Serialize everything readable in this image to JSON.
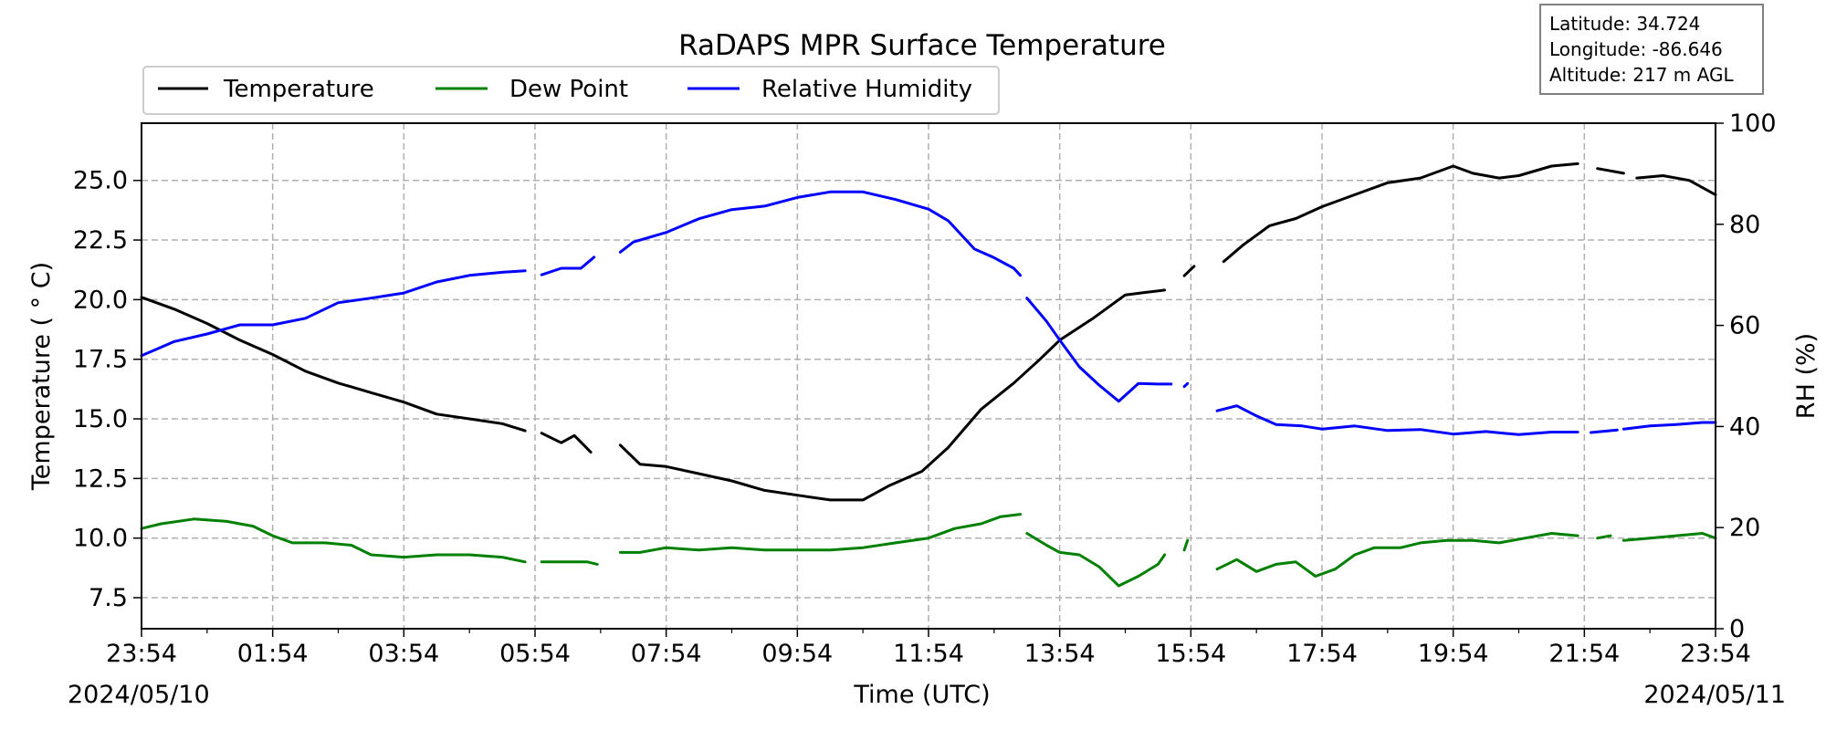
{
  "chart_data": {
    "type": "line",
    "title": "RaDAPS MPR Surface Temperature",
    "xlabel": "Time (UTC)",
    "ylabel": "Temperature ($^\\circ$C)",
    "ylabel_display": "Temperature ( ° C)",
    "ylabel_right": "RH (%)",
    "x_ticks": [
      "23:54",
      "01:54",
      "03:54",
      "05:54",
      "07:54",
      "09:54",
      "11:54",
      "13:54",
      "15:54",
      "17:54",
      "19:54",
      "21:54",
      "23:54"
    ],
    "date_start": "2024/05/10",
    "date_end": "2024/05/11",
    "xlim_hours": [
      0,
      24
    ],
    "ylim": [
      6.2,
      27.4
    ],
    "y_ticks": [
      "7.5",
      "10.0",
      "12.5",
      "15.0",
      "17.5",
      "20.0",
      "22.5",
      "25.0"
    ],
    "y_tick_values": [
      7.5,
      10.0,
      12.5,
      15.0,
      17.5,
      20.0,
      22.5,
      25.0
    ],
    "ylim_right": [
      0,
      100
    ],
    "y_ticks_right": [
      "0",
      "20",
      "40",
      "60",
      "80",
      "100"
    ],
    "grid": true,
    "legend_placement": "top-left, above axes",
    "info_box": {
      "latitude": "Latitude: 34.724",
      "longitude": "Longitude: -86.646",
      "altitude": "Altitude: 217 m AGL"
    },
    "series": [
      {
        "name": "Temperature",
        "color": "#000000",
        "axis": "left",
        "segments": [
          [
            [
              0,
              20.1
            ],
            [
              0.5,
              19.6
            ],
            [
              1,
              19.0
            ],
            [
              1.5,
              18.3
            ],
            [
              2,
              17.7
            ],
            [
              2.5,
              17.0
            ],
            [
              3,
              16.5
            ],
            [
              3.5,
              16.1
            ],
            [
              4,
              15.7
            ],
            [
              4.5,
              15.2
            ],
            [
              5,
              15.0
            ],
            [
              5.5,
              14.8
            ],
            [
              5.85,
              14.5
            ]
          ],
          [
            [
              6.1,
              14.4
            ],
            [
              6.4,
              14.0
            ],
            [
              6.6,
              14.3
            ],
            [
              6.85,
              13.6
            ]
          ],
          [
            [
              7.3,
              13.9
            ],
            [
              7.6,
              13.1
            ],
            [
              8,
              13.0
            ],
            [
              8.5,
              12.7
            ],
            [
              9,
              12.4
            ],
            [
              9.5,
              12.0
            ],
            [
              10,
              11.8
            ],
            [
              10.5,
              11.6
            ],
            [
              11,
              11.6
            ],
            [
              11.4,
              12.2
            ],
            [
              11.9,
              12.8
            ],
            [
              12.3,
              13.8
            ],
            [
              12.8,
              15.4
            ],
            [
              13.3,
              16.5
            ],
            [
              13.7,
              17.5
            ],
            [
              14,
              18.3
            ],
            [
              14.5,
              19.2
            ],
            [
              15,
              20.2
            ],
            [
              15.3,
              20.3
            ],
            [
              15.6,
              20.4
            ]
          ],
          [
            [
              15.9,
              21.0
            ],
            [
              16.05,
              21.4
            ]
          ],
          [
            [
              16.5,
              21.6
            ],
            [
              16.8,
              22.3
            ],
            [
              17.2,
              23.1
            ],
            [
              17.6,
              23.4
            ],
            [
              18,
              23.9
            ],
            [
              18.5,
              24.4
            ],
            [
              19,
              24.9
            ],
            [
              19.5,
              25.1
            ],
            [
              20,
              25.6
            ],
            [
              20.3,
              25.3
            ],
            [
              20.7,
              25.1
            ],
            [
              21,
              25.2
            ],
            [
              21.5,
              25.6
            ],
            [
              21.9,
              25.7
            ]
          ],
          [
            [
              22.2,
              25.5
            ],
            [
              22.6,
              25.3
            ]
          ],
          [
            [
              22.8,
              25.1
            ],
            [
              23.2,
              25.2
            ],
            [
              23.6,
              25.0
            ],
            [
              24,
              24.4
            ]
          ]
        ]
      },
      {
        "name": "Dew Point",
        "color": "#008000",
        "axis": "left",
        "segments": [
          [
            [
              0,
              10.4
            ],
            [
              0.3,
              10.6
            ],
            [
              0.8,
              10.8
            ],
            [
              1.3,
              10.7
            ],
            [
              1.7,
              10.5
            ],
            [
              2,
              10.1
            ],
            [
              2.3,
              9.8
            ],
            [
              2.8,
              9.8
            ],
            [
              3.2,
              9.7
            ],
            [
              3.5,
              9.3
            ],
            [
              4,
              9.2
            ],
            [
              4.5,
              9.3
            ],
            [
              5,
              9.3
            ],
            [
              5.5,
              9.2
            ],
            [
              5.85,
              9.0
            ]
          ],
          [
            [
              6.1,
              9.0
            ],
            [
              6.5,
              9.0
            ],
            [
              6.8,
              9.0
            ],
            [
              6.95,
              8.9
            ]
          ],
          [
            [
              7.3,
              9.4
            ],
            [
              7.6,
              9.4
            ],
            [
              8,
              9.6
            ],
            [
              8.5,
              9.5
            ],
            [
              9,
              9.6
            ],
            [
              9.5,
              9.5
            ],
            [
              10,
              9.5
            ],
            [
              10.5,
              9.5
            ],
            [
              11,
              9.6
            ],
            [
              11.5,
              9.8
            ],
            [
              12,
              10.0
            ],
            [
              12.4,
              10.4
            ],
            [
              12.8,
              10.6
            ],
            [
              13.1,
              10.9
            ],
            [
              13.4,
              11.0
            ]
          ],
          [
            [
              13.5,
              10.2
            ],
            [
              13.8,
              9.7
            ],
            [
              14,
              9.4
            ],
            [
              14.3,
              9.3
            ],
            [
              14.6,
              8.8
            ],
            [
              14.9,
              8.0
            ],
            [
              15.2,
              8.4
            ],
            [
              15.5,
              8.9
            ],
            [
              15.6,
              9.3
            ]
          ],
          [
            [
              15.9,
              9.5
            ],
            [
              15.95,
              9.9
            ]
          ],
          [
            [
              16.4,
              8.7
            ],
            [
              16.7,
              9.1
            ],
            [
              17,
              8.6
            ],
            [
              17.3,
              8.9
            ],
            [
              17.6,
              9.0
            ],
            [
              17.9,
              8.4
            ],
            [
              18.2,
              8.7
            ],
            [
              18.5,
              9.3
            ],
            [
              18.8,
              9.6
            ],
            [
              19.2,
              9.6
            ],
            [
              19.5,
              9.8
            ],
            [
              19.9,
              9.9
            ],
            [
              20.3,
              9.9
            ],
            [
              20.7,
              9.8
            ],
            [
              21.1,
              10.0
            ],
            [
              21.5,
              10.2
            ],
            [
              21.9,
              10.1
            ]
          ],
          [
            [
              22.2,
              10.0
            ],
            [
              22.4,
              10.1
            ]
          ],
          [
            [
              22.6,
              9.9
            ],
            [
              23,
              10.0
            ],
            [
              23.4,
              10.1
            ],
            [
              23.8,
              10.2
            ],
            [
              24,
              10.0
            ]
          ]
        ]
      },
      {
        "name": "Relative Humidity",
        "color": "#0000ff",
        "axis": "right",
        "segments": [
          [
            [
              0,
              54
            ],
            [
              0.5,
              56.8
            ],
            [
              1,
              58.3
            ],
            [
              1.5,
              60.1
            ],
            [
              2,
              60.1
            ],
            [
              2.5,
              61.4
            ],
            [
              3,
              64.5
            ],
            [
              3.5,
              65.4
            ],
            [
              4,
              66.4
            ],
            [
              4.5,
              68.6
            ],
            [
              5,
              69.9
            ],
            [
              5.5,
              70.5
            ],
            [
              5.85,
              70.8
            ]
          ],
          [
            [
              6.1,
              70.0
            ],
            [
              6.4,
              71.3
            ],
            [
              6.7,
              71.3
            ],
            [
              6.9,
              73.5
            ]
          ],
          [
            [
              7.3,
              74.5
            ],
            [
              7.5,
              76.5
            ],
            [
              8,
              78.4
            ],
            [
              8.5,
              81.1
            ],
            [
              9,
              82.9
            ],
            [
              9.5,
              83.6
            ],
            [
              10,
              85.3
            ],
            [
              10.5,
              86.4
            ],
            [
              11,
              86.4
            ],
            [
              11.5,
              84.9
            ],
            [
              12,
              83.0
            ],
            [
              12.3,
              80.7
            ],
            [
              12.7,
              75.1
            ],
            [
              13,
              73.4
            ],
            [
              13.3,
              71.3
            ],
            [
              13.4,
              69.9
            ]
          ],
          [
            [
              13.5,
              65.4
            ],
            [
              13.8,
              60.8
            ],
            [
              14,
              57.1
            ],
            [
              14.3,
              51.8
            ],
            [
              14.6,
              48.2
            ],
            [
              14.9,
              45.0
            ],
            [
              15.2,
              48.5
            ],
            [
              15.5,
              48.4
            ],
            [
              15.7,
              48.4
            ]
          ],
          [
            [
              15.9,
              47.9
            ],
            [
              15.95,
              48.5
            ]
          ],
          [
            [
              16.4,
              43.1
            ],
            [
              16.7,
              44.1
            ],
            [
              17,
              42.1
            ],
            [
              17.3,
              40.4
            ],
            [
              17.7,
              40.1
            ],
            [
              18,
              39.5
            ],
            [
              18.5,
              40.1
            ],
            [
              19,
              39.2
            ],
            [
              19.5,
              39.4
            ],
            [
              20,
              38.5
            ],
            [
              20.5,
              39.0
            ],
            [
              21,
              38.4
            ],
            [
              21.5,
              38.9
            ],
            [
              21.9,
              38.9
            ]
          ],
          [
            [
              22.1,
              38.8
            ],
            [
              22.5,
              39.3
            ]
          ],
          [
            [
              22.6,
              39.5
            ],
            [
              23,
              40.1
            ],
            [
              23.4,
              40.4
            ],
            [
              23.8,
              40.8
            ],
            [
              24,
              40.8
            ]
          ]
        ]
      }
    ]
  }
}
